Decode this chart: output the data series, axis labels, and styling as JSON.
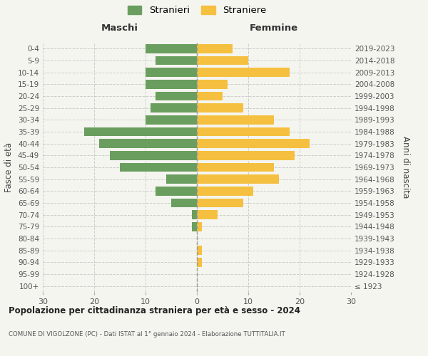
{
  "age_groups": [
    "100+",
    "95-99",
    "90-94",
    "85-89",
    "80-84",
    "75-79",
    "70-74",
    "65-69",
    "60-64",
    "55-59",
    "50-54",
    "45-49",
    "40-44",
    "35-39",
    "30-34",
    "25-29",
    "20-24",
    "15-19",
    "10-14",
    "5-9",
    "0-4"
  ],
  "birth_years": [
    "≤ 1923",
    "1924-1928",
    "1929-1933",
    "1934-1938",
    "1939-1943",
    "1944-1948",
    "1949-1953",
    "1954-1958",
    "1959-1963",
    "1964-1968",
    "1969-1973",
    "1974-1978",
    "1979-1983",
    "1984-1988",
    "1989-1993",
    "1994-1998",
    "1999-2003",
    "2004-2008",
    "2009-2013",
    "2014-2018",
    "2019-2023"
  ],
  "maschi": [
    0,
    0,
    0,
    0,
    0,
    1,
    1,
    5,
    8,
    6,
    15,
    17,
    19,
    22,
    10,
    9,
    8,
    10,
    10,
    8,
    10
  ],
  "femmine": [
    0,
    0,
    1,
    1,
    0,
    1,
    4,
    9,
    11,
    16,
    15,
    19,
    22,
    18,
    15,
    9,
    5,
    6,
    18,
    10,
    7
  ],
  "color_maschi": "#6a9e5e",
  "color_femmine": "#f5c040",
  "background_color": "#f5f5f0",
  "grid_color": "#cccccc",
  "title": "Popolazione per cittadinanza straniera per età e sesso - 2024",
  "subtitle": "COMUNE DI VIGOLZONE (PC) - Dati ISTAT al 1° gennaio 2024 - Elaborazione TUTTITALIA.IT",
  "xlabel_left": "Maschi",
  "xlabel_right": "Femmine",
  "ylabel_left": "Fasce di età",
  "ylabel_right": "Anni di nascita",
  "legend_maschi": "Stranieri",
  "legend_femmine": "Straniere",
  "xlim": 30
}
